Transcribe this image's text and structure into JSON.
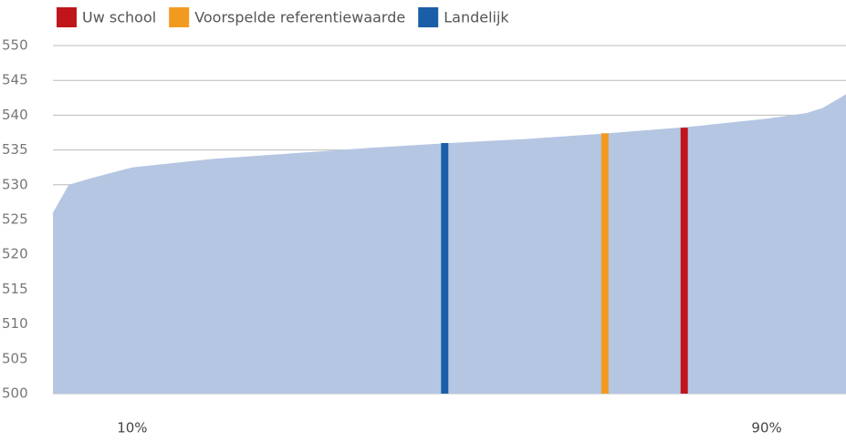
{
  "chart_data": {
    "type": "area",
    "x": [
      0,
      2,
      5,
      10,
      20,
      30,
      40,
      50,
      60,
      70,
      80,
      90,
      95,
      97,
      100
    ],
    "values": [
      526,
      530,
      531,
      532.5,
      533.7,
      534.5,
      535.3,
      536,
      536.6,
      537.4,
      538.3,
      539.5,
      540.3,
      541,
      543
    ],
    "color": "#b5c6e3",
    "markers": [
      {
        "name": "Uw school",
        "color": "#c0161b",
        "x": 79.6,
        "value": 538.2
      },
      {
        "name": "Voorspelde referentiewaarde",
        "color": "#f29a1f",
        "x": 69.6,
        "value": 537.4
      },
      {
        "name": "Landelijk",
        "color": "#1a5ea8",
        "x": 49.4,
        "value": 536
      }
    ],
    "xlim": [
      0,
      100
    ],
    "xticks": [
      {
        "value": 10,
        "label": "10%"
      },
      {
        "value": 90,
        "label": "90%"
      }
    ],
    "ylim": [
      500,
      550
    ],
    "yticks": [
      500,
      505,
      510,
      515,
      520,
      525,
      530,
      535,
      540,
      545,
      550
    ],
    "grid": true
  }
}
